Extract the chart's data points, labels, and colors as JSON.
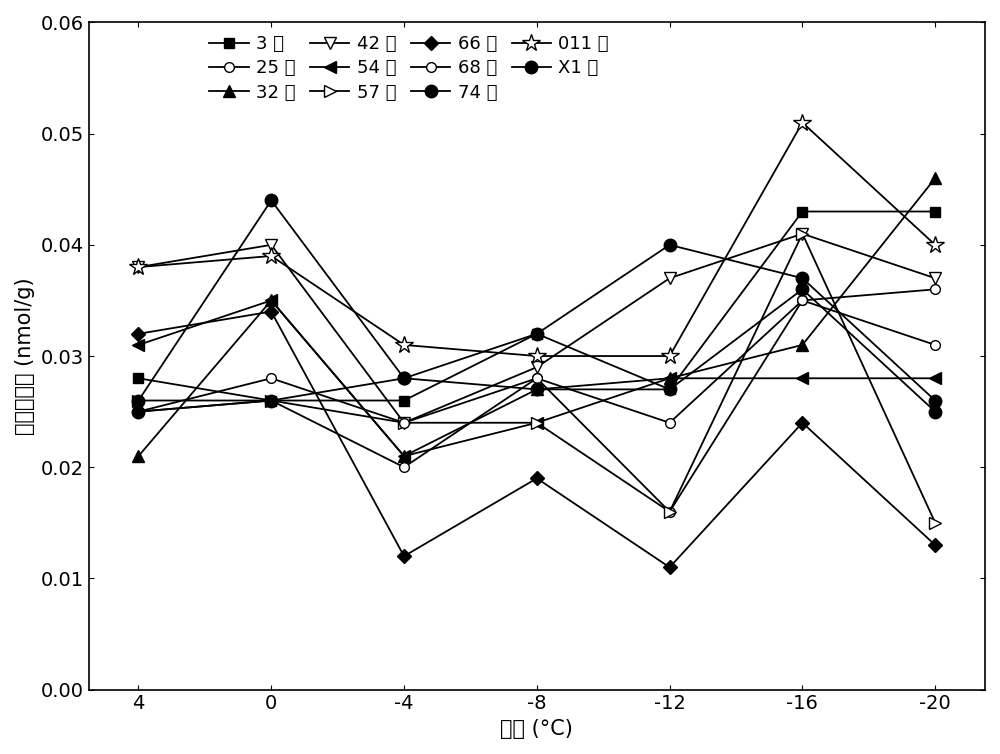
{
  "x": [
    4,
    0,
    -4,
    -8,
    -12,
    -16,
    -20
  ],
  "series": [
    {
      "name": "3 号",
      "values": [
        0.028,
        0.026,
        0.026,
        0.032,
        0.027,
        0.043,
        0.043
      ],
      "marker": "s",
      "filled": true,
      "ms": 7
    },
    {
      "name": "25 号",
      "values": [
        0.025,
        0.026,
        0.02,
        0.028,
        0.016,
        0.035,
        0.031
      ],
      "marker": "o",
      "filled": false,
      "ms": 7
    },
    {
      "name": "32 号",
      "values": [
        0.021,
        0.035,
        0.021,
        0.027,
        0.028,
        0.031,
        0.046
      ],
      "marker": "^",
      "filled": true,
      "ms": 8
    },
    {
      "name": "42 号",
      "values": [
        0.038,
        0.04,
        0.024,
        0.029,
        0.037,
        0.041,
        0.037
      ],
      "marker": "v",
      "filled": false,
      "ms": 8
    },
    {
      "name": "54 号",
      "values": [
        0.031,
        0.035,
        0.021,
        0.024,
        0.028,
        0.028,
        0.028
      ],
      "marker": "<",
      "filled": true,
      "ms": 8
    },
    {
      "name": "57 号",
      "values": [
        0.026,
        0.026,
        0.024,
        0.024,
        0.016,
        0.041,
        0.015
      ],
      "marker": ">",
      "filled": false,
      "ms": 8
    },
    {
      "name": "66 号",
      "values": [
        0.032,
        0.034,
        0.012,
        0.019,
        0.011,
        0.024,
        0.013
      ],
      "marker": "D",
      "filled": true,
      "ms": 7
    },
    {
      "name": "68 号",
      "values": [
        0.025,
        0.028,
        0.024,
        0.028,
        0.024,
        0.035,
        0.036
      ],
      "marker": "o",
      "filled": false,
      "ms": 7
    },
    {
      "name": "74 号",
      "values": [
        0.026,
        0.044,
        0.028,
        0.032,
        0.04,
        0.037,
        0.026
      ],
      "marker": "o",
      "filled": true,
      "ms": 9
    },
    {
      "name": "011 号",
      "values": [
        0.038,
        0.039,
        0.031,
        0.03,
        0.03,
        0.051,
        0.04
      ],
      "marker": "*",
      "filled": false,
      "ms": 13
    },
    {
      "name": "X1 号",
      "values": [
        0.025,
        0.026,
        0.028,
        0.027,
        0.027,
        0.036,
        0.025
      ],
      "marker": "o",
      "filled": true,
      "ms": 9
    }
  ],
  "xlabel": "温度 (°C)",
  "ylabel": "丙二醒含量 (nmol/g)",
  "ylim": [
    0.0,
    0.06
  ],
  "yticks": [
    0.0,
    0.01,
    0.02,
    0.03,
    0.04,
    0.05,
    0.06
  ],
  "xticks": [
    4,
    0,
    -4,
    -8,
    -12,
    -16,
    -20
  ],
  "axis_fontsize": 15,
  "tick_fontsize": 14,
  "legend_fontsize": 13
}
